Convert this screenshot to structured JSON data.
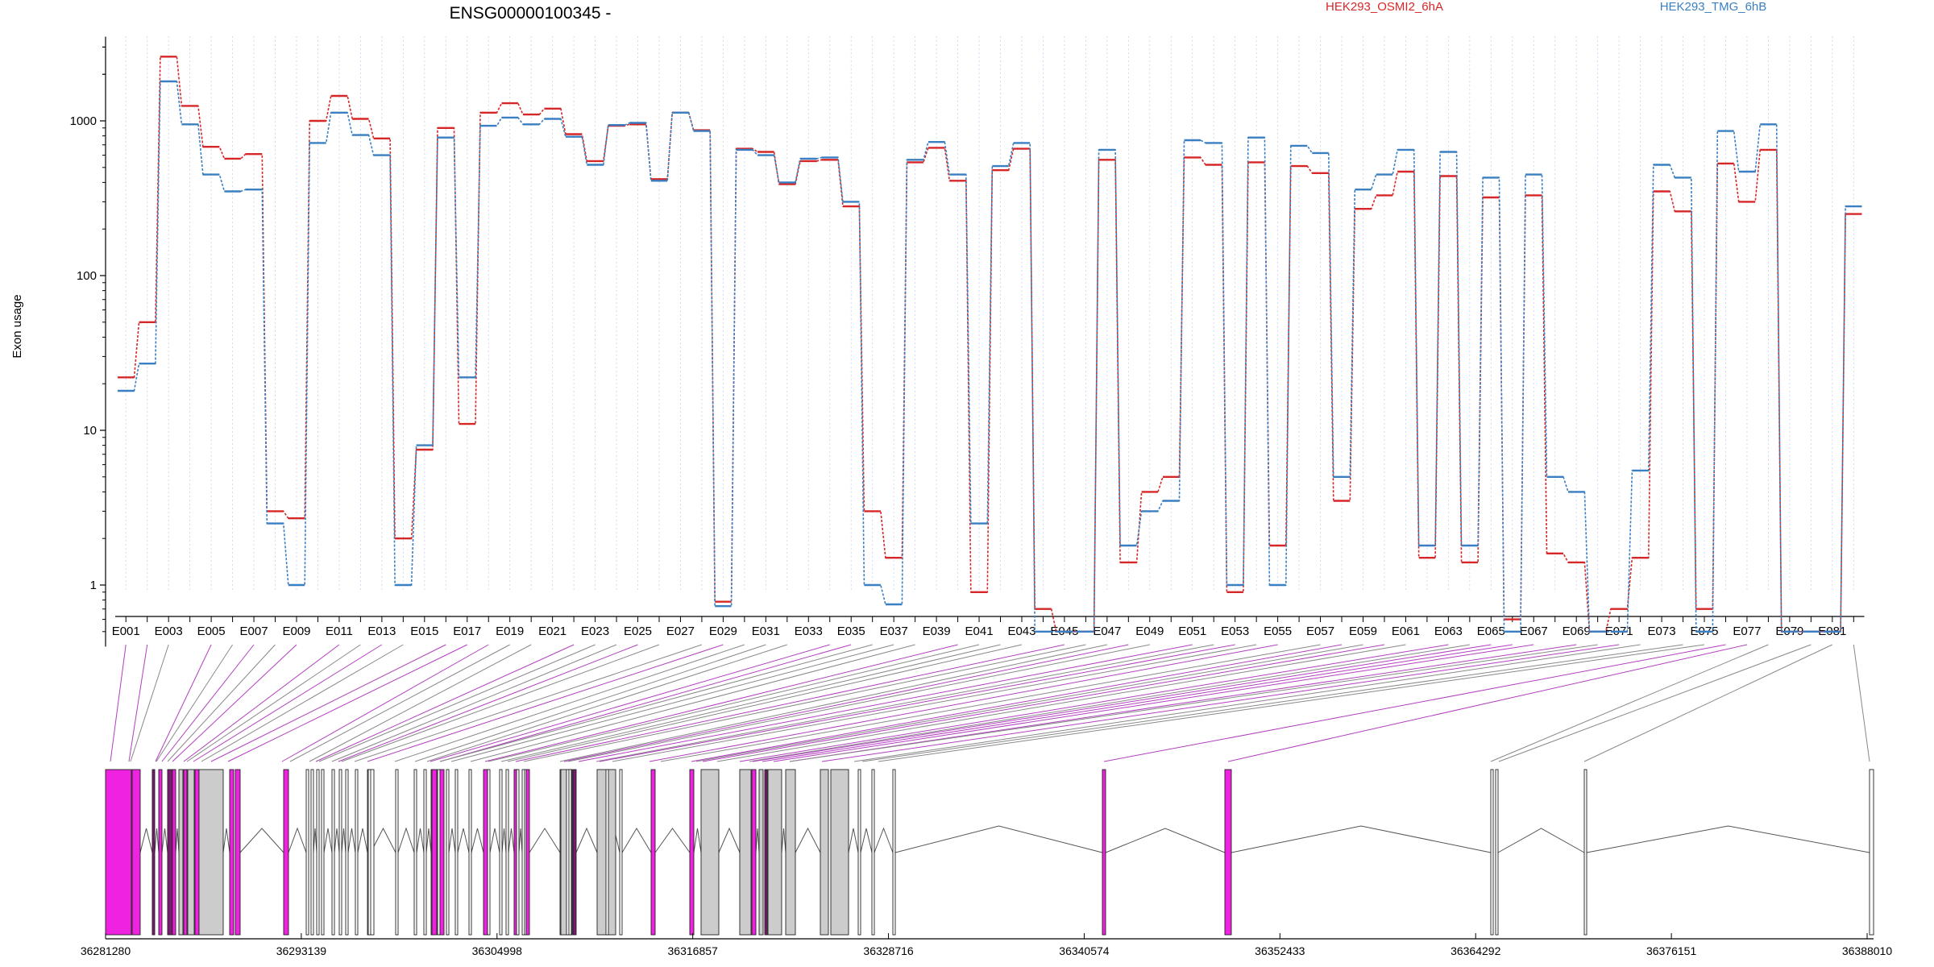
{
  "chart_data": {
    "type": "line",
    "title": "ENSG00000100345 -",
    "ylabel": "Exon usage",
    "y_scale": "log",
    "ylim": [
      0.4,
      3500
    ],
    "y_ticks": [
      1,
      10,
      100,
      1000
    ],
    "y_tick_labels": [
      "1",
      "10",
      "100",
      "1000"
    ],
    "categories": [
      "E001",
      "E002",
      "E003",
      "E004",
      "E005",
      "E006",
      "E007",
      "E008",
      "E009",
      "E010",
      "E011",
      "E012",
      "E013",
      "E014",
      "E015",
      "E016",
      "E017",
      "E018",
      "E019",
      "E020",
      "E021",
      "E022",
      "E023",
      "E024",
      "E025",
      "E026",
      "E027",
      "E028",
      "E029",
      "E030",
      "E031",
      "E032",
      "E033",
      "E034",
      "E035",
      "E036",
      "E037",
      "E038",
      "E039",
      "E040",
      "E041",
      "E042",
      "E043",
      "E044",
      "E045",
      "E046",
      "E047",
      "E048",
      "E049",
      "E050",
      "E051",
      "E052",
      "E053",
      "E054",
      "E055",
      "E056",
      "E057",
      "E058",
      "E059",
      "E060",
      "E061",
      "E062",
      "E063",
      "E064",
      "E065",
      "E066",
      "E067",
      "E068",
      "E069",
      "E070",
      "E071",
      "E072",
      "E073",
      "E074",
      "E075",
      "E076",
      "E077",
      "E078",
      "E079",
      "E080",
      "E081",
      "E082"
    ],
    "x_tick_labels": [
      "E001",
      "E003",
      "E005",
      "E007",
      "E009",
      "E011",
      "E013",
      "E015",
      "E017",
      "E019",
      "E021",
      "E023",
      "E025",
      "E027",
      "E029",
      "E031",
      "E033",
      "E035",
      "E037",
      "E039",
      "E041",
      "E043",
      "E045",
      "E047",
      "E049",
      "E051",
      "E053",
      "E055",
      "E057",
      "E059",
      "E061",
      "E063",
      "E065",
      "E067",
      "E069",
      "E071",
      "E073",
      "E075",
      "E077",
      "E079",
      "E081"
    ],
    "series": [
      {
        "name": "HEK293_OSMI2_6hA",
        "color": "#d62728",
        "values": [
          22,
          50,
          2600,
          1250,
          680,
          570,
          610,
          3,
          2.7,
          1000,
          1450,
          1030,
          770,
          2,
          7.5,
          900,
          11,
          1130,
          1300,
          1100,
          1200,
          820,
          550,
          930,
          950,
          420,
          1130,
          870,
          0.78,
          660,
          630,
          390,
          550,
          560,
          280,
          3,
          1.5,
          540,
          670,
          410,
          0.9,
          480,
          660,
          0.7,
          0.5,
          0.5,
          560,
          1.4,
          4,
          5,
          580,
          520,
          0.9,
          540,
          1.8,
          510,
          460,
          3.5,
          270,
          330,
          470,
          1.5,
          440,
          1.4,
          320,
          0.6,
          330,
          1.6,
          1.4,
          0.5,
          0.7,
          1.5,
          350,
          260,
          0.7,
          530,
          300,
          650,
          0.5,
          0.5,
          0.5,
          250
        ]
      },
      {
        "name": "HEK293_TMG_6hB",
        "color": "#3a7fc1",
        "values": [
          18,
          27,
          1800,
          950,
          450,
          350,
          360,
          2.5,
          1,
          720,
          1130,
          810,
          600,
          1,
          8,
          780,
          22,
          930,
          1050,
          950,
          1030,
          790,
          520,
          940,
          970,
          410,
          1130,
          860,
          0.73,
          650,
          600,
          400,
          570,
          580,
          300,
          1,
          0.75,
          560,
          730,
          450,
          2.5,
          510,
          720,
          0.5,
          0.5,
          0.5,
          650,
          1.8,
          3,
          3.5,
          750,
          720,
          1,
          780,
          1,
          690,
          620,
          5,
          360,
          450,
          650,
          1.8,
          630,
          1.8,
          430,
          0.5,
          450,
          5,
          4,
          0.5,
          0.5,
          5.5,
          520,
          430,
          0.5,
          860,
          470,
          950,
          0.5,
          0.5,
          0.5,
          280
        ]
      }
    ],
    "genome_axis": {
      "tick_labels": [
        "36281280",
        "36293139",
        "36304998",
        "36316857",
        "36328716",
        "36340574",
        "36352433",
        "36364292",
        "36376151",
        "36388010"
      ]
    }
  }
}
